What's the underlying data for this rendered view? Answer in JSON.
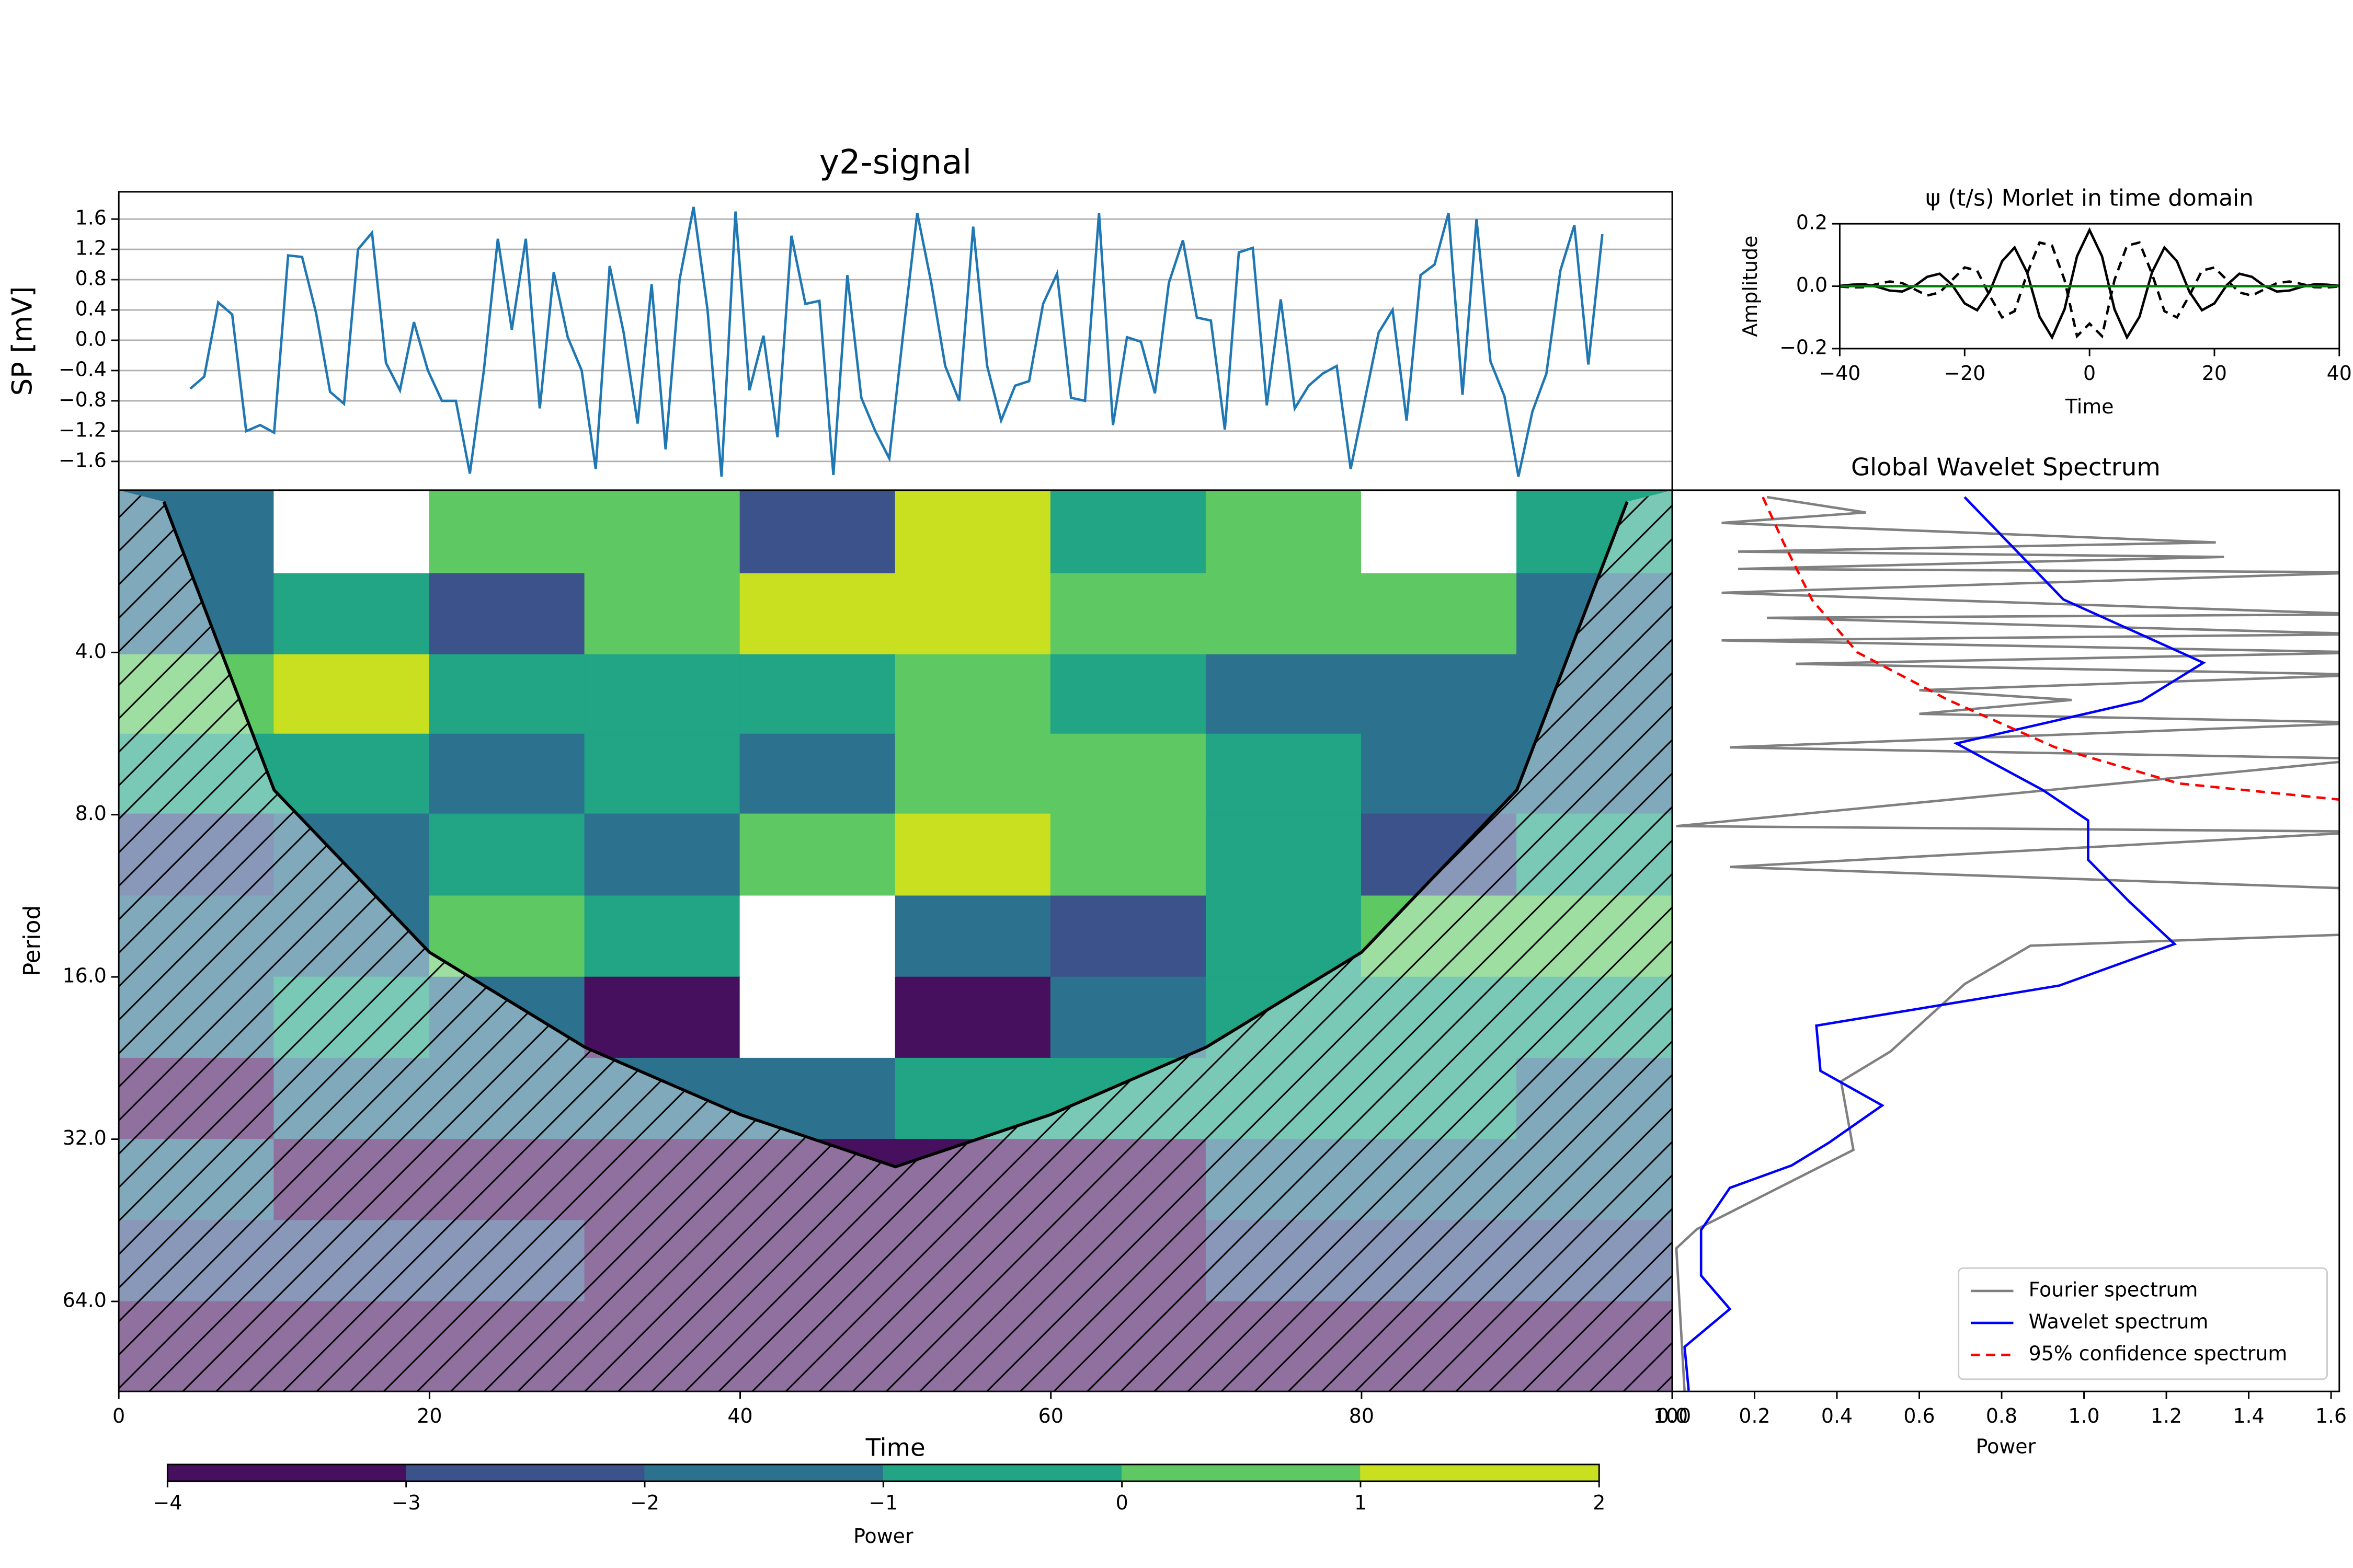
{
  "chart_data": [
    {
      "type": "line",
      "title": "y2-signal",
      "ylabel": "SP [mV]",
      "grid": true,
      "xlim": [
        0,
        100
      ],
      "ylim": [
        -1.98,
        1.96
      ],
      "yticks": [
        {
          "value": -1.6,
          "label": "−1.6"
        },
        {
          "value": -1.2,
          "label": "−1.2"
        },
        {
          "value": -0.8,
          "label": "−0.8"
        },
        {
          "value": -0.4,
          "label": "−0.4"
        },
        {
          "value": 0,
          "label": "0.0"
        },
        0.4,
        0.8,
        1.2,
        1.6
      ],
      "x": [
        4.6,
        5.5,
        6.4,
        7.3,
        8.2,
        9.1,
        10.0,
        10.9,
        11.8,
        12.7,
        13.6,
        14.5,
        15.4,
        16.3,
        17.2,
        18.1,
        19.0,
        19.9,
        20.8,
        21.7,
        22.6,
        23.5,
        24.4,
        25.3,
        26.2,
        27.1,
        28.0,
        28.9,
        29.8,
        30.7,
        31.6,
        32.5,
        33.4,
        34.3,
        35.2,
        36.1,
        37.0,
        37.9,
        38.8,
        39.7,
        40.6,
        41.5,
        42.4,
        43.3,
        44.2,
        45.1,
        46.0,
        46.9,
        47.8,
        48.7,
        49.6,
        50.5,
        51.4,
        52.3,
        53.2,
        54.1,
        55.0,
        55.9,
        56.8,
        57.7,
        58.6,
        59.5,
        60.4,
        61.3,
        62.2,
        63.1,
        64.0,
        64.9,
        65.8,
        66.7,
        67.6,
        68.5,
        69.4,
        70.3,
        71.2,
        72.1,
        73.0,
        73.9,
        74.8,
        75.7,
        76.6,
        77.5,
        78.4,
        79.3,
        80.2,
        81.1,
        82.0,
        82.9,
        83.8,
        84.7,
        85.6,
        86.5,
        87.4,
        88.3,
        89.2,
        90.1,
        91.0,
        91.9,
        92.8,
        93.7,
        94.6,
        95.5
      ],
      "series": [
        {
          "color": "#1f77b4",
          "values": [
            -0.64,
            -0.48,
            0.5,
            0.34,
            -1.2,
            -1.12,
            -1.22,
            1.12,
            1.1,
            0.36,
            -0.68,
            -0.84,
            1.2,
            1.42,
            -0.3,
            -0.66,
            0.24,
            -0.4,
            -0.8,
            -0.8,
            -1.76,
            -0.4,
            1.34,
            0.14,
            1.34,
            -0.9,
            0.9,
            0.04,
            -0.4,
            -1.7,
            0.98,
            0.1,
            -1.1,
            0.74,
            -1.44,
            0.8,
            1.76,
            0.4,
            -1.8,
            1.7,
            -0.66,
            0.06,
            -1.28,
            1.38,
            0.48,
            0.52,
            -1.78,
            0.86,
            -0.76,
            -1.2,
            -1.56,
            0.1,
            1.68,
            0.76,
            -0.34,
            -0.8,
            1.5,
            -0.34,
            -1.06,
            -0.6,
            -0.54,
            0.48,
            0.88,
            -0.76,
            -0.8,
            1.68,
            -1.12,
            0.04,
            -0.02,
            -0.7,
            0.76,
            1.32,
            0.3,
            0.26,
            -1.18,
            1.16,
            1.22,
            -0.86,
            0.54,
            -0.9,
            -0.6,
            -0.44,
            -0.34,
            -1.7,
            -0.8,
            0.1,
            0.4,
            -1.06,
            0.86,
            1.0,
            1.68,
            -0.72,
            1.6,
            -0.28,
            -0.74,
            -1.8,
            -0.94,
            -0.44,
            0.92,
            1.52,
            -0.32,
            1.4
          ]
        }
      ]
    },
    {
      "type": "contour",
      "xlabel": "Time",
      "ylabel": "Period",
      "log_scale": true,
      "xlim": [
        0,
        100
      ],
      "ylim": [
        2,
        94
      ],
      "xticks": [
        0,
        20,
        40,
        60,
        80,
        100
      ],
      "yticks": [
        {
          "value": 4,
          "label": "4.0"
        },
        {
          "value": 8,
          "label": "8.0"
        },
        {
          "value": 16,
          "label": "16.0"
        },
        {
          "value": 32,
          "label": "32.0"
        },
        {
          "value": 64,
          "label": "64.0"
        }
      ],
      "x": [
        5,
        15,
        25,
        35,
        45,
        55,
        65,
        75,
        85,
        95
      ],
      "periods": [
        2.4,
        3.4,
        4.8,
        6.7,
        9.5,
        13.5,
        19,
        27,
        38,
        54,
        76
      ],
      "z": [
        [
          -2,
          -4.5,
          0,
          0.5,
          -2.5,
          1,
          -1,
          0,
          -4.5,
          -1
        ],
        [
          -2,
          -1,
          -2.5,
          0.5,
          1,
          1.5,
          0.5,
          0.5,
          0,
          -1.5
        ],
        [
          0.5,
          1,
          -0.5,
          -0.5,
          -1,
          0,
          -0.5,
          -2,
          -1.5,
          -1.5
        ],
        [
          -1,
          -0.5,
          -1.5,
          -0.5,
          -2,
          0.5,
          0,
          -0.5,
          -2,
          -1.5
        ],
        [
          -2.5,
          -1.5,
          -1,
          -2,
          0,
          1,
          0,
          -1,
          -2.5,
          -0.5
        ],
        [
          -2,
          -1.5,
          0.5,
          -0.5,
          -4.5,
          -1.5,
          -3,
          -1,
          0.5,
          0
        ],
        [
          -1.5,
          -1,
          -1.5,
          -3.5,
          -4.5,
          -3.5,
          -1.5,
          -0.5,
          -0.5,
          -0.5
        ],
        [
          -3.5,
          -2,
          -1.5,
          -1.5,
          -1.5,
          -1,
          -1,
          -1,
          -1,
          -1.5
        ],
        [
          -1.5,
          -3.5,
          -3.5,
          -3.5,
          -3.5,
          -3.5,
          -3.5,
          -1.5,
          -1.5,
          -1.5
        ],
        [
          -2.5,
          -2.5,
          -2.5,
          -3.5,
          -3.5,
          -3.5,
          -3.5,
          -2.5,
          -2.5,
          -2.5
        ],
        [
          -3.5,
          -3.5,
          -3.5,
          -3.5,
          -3.5,
          -3.5,
          -3.5,
          -3.5,
          -3.5,
          -3.5
        ]
      ],
      "levels": [
        {
          "value": -4,
          "label": "−4"
        },
        {
          "value": -3,
          "label": "−3"
        },
        {
          "value": -2,
          "label": "−2"
        },
        {
          "value": -1,
          "label": "−1"
        },
        0,
        1,
        2
      ],
      "colors": [
        "#46105f",
        "#3b528b",
        "#2c728e",
        "#21a585",
        "#5ec962",
        "#c8e020"
      ],
      "colorbar_label": "Power",
      "coi_time": [
        2.9,
        10,
        20,
        30,
        40,
        50,
        60,
        70,
        80,
        90,
        97.1
      ],
      "coi_period": [
        2.1,
        7.2,
        14.4,
        21.6,
        28.8,
        36,
        28.8,
        21.6,
        14.4,
        7.2,
        2.1
      ]
    },
    {
      "type": "line",
      "title": "ψ (t/s) Morlet in time domain",
      "xlabel": "Time",
      "ylabel": "Amplitude",
      "xlim": [
        -40,
        40
      ],
      "ylim": [
        -0.2,
        0.2
      ],
      "xticks": [
        {
          "value": -40,
          "label": "−40"
        },
        {
          "value": -20,
          "label": "−20"
        },
        0,
        20,
        40
      ],
      "yticks": [
        {
          "value": -0.2,
          "label": "−0.2"
        },
        {
          "value": 0,
          "label": "0.0"
        },
        0.2
      ],
      "x": [
        -40,
        -38,
        -36,
        -34,
        -32,
        -30,
        -28,
        -26,
        -24,
        -22,
        -20,
        -18,
        -16,
        -14,
        -12,
        -10,
        -8,
        -6,
        -4,
        -2,
        0,
        2,
        4,
        6,
        8,
        10,
        12,
        14,
        16,
        18,
        20,
        22,
        24,
        26,
        28,
        30,
        32,
        34,
        36,
        38,
        40
      ],
      "series": [
        {
          "color": "#000000",
          "values": [
            0.001,
            0.005,
            0.006,
            -0.002,
            -0.014,
            -0.017,
            0.001,
            0.03,
            0.04,
            0.004,
            -0.055,
            -0.077,
            -0.018,
            0.08,
            0.124,
            0.044,
            -0.098,
            -0.164,
            -0.074,
            0.096,
            0.18,
            0.096,
            -0.074,
            -0.164,
            -0.098,
            0.044,
            0.124,
            0.08,
            -0.018,
            -0.077,
            -0.055,
            0.004,
            0.04,
            0.03,
            0.001,
            -0.017,
            -0.014,
            -0.002,
            0.006,
            0.005,
            0.001
          ]
        },
        {
          "color": "#000000",
          "linestyle": "dashed",
          "values": [
            -0.001,
            -0.004,
            -0.003,
            0.007,
            0.015,
            0.01,
            -0.01,
            -0.03,
            -0.02,
            0.02,
            0.06,
            0.05,
            -0.03,
            -0.1,
            -0.08,
            0.04,
            0.14,
            0.13,
            0.02,
            -0.16,
            -0.12,
            -0.16,
            0.02,
            0.13,
            0.14,
            0.04,
            -0.08,
            -0.1,
            -0.03,
            0.05,
            0.06,
            0.02,
            -0.02,
            -0.03,
            -0.01,
            0.01,
            0.015,
            0.007,
            -0.003,
            -0.004,
            -0.001
          ]
        },
        {
          "color": "#008000",
          "values": [
            0,
            0,
            0,
            0,
            0,
            0,
            0,
            0,
            0,
            0,
            0,
            0,
            0,
            0,
            0,
            0,
            0,
            0,
            0,
            0,
            0,
            0,
            0,
            0,
            0,
            0,
            0,
            0,
            0,
            0,
            0,
            0,
            0,
            0,
            0,
            0,
            0,
            0,
            0,
            0,
            0
          ]
        }
      ]
    },
    {
      "type": "line",
      "orientation": "horizontal",
      "title": "Global Wavelet Spectrum",
      "xlabel": "Power",
      "log_scale": true,
      "xlim": [
        0,
        1.62
      ],
      "ylim": [
        2,
        94
      ],
      "legend": "lower right",
      "xticks": [
        {
          "value": 0,
          "label": "0.0"
        },
        0.2,
        0.4,
        0.6,
        0.8,
        {
          "value": 1,
          "label": "1.0"
        },
        1.2,
        1.4,
        1.6
      ],
      "series": [
        {
          "name": "Fourier spectrum",
          "color": "#808080",
          "periods": [
            2.06,
            2.2,
            2.3,
            2.5,
            2.6,
            2.66,
            2.8,
            2.84,
            3.1,
            3.4,
            3.45,
            3.7,
            3.8,
            4.0,
            4.2,
            4.4,
            4.7,
            4.9,
            5.2,
            5.4,
            6.0,
            6.3,
            8.4,
            8.6,
            10.0,
            11.0,
            13.3,
            14.0,
            16.5,
            22,
            25,
            33.5,
            47,
            51,
            94
          ],
          "values": [
            0.23,
            0.47,
            0.12,
            1.32,
            0.16,
            1.34,
            0.16,
            1.7,
            0.12,
            1.7,
            0.23,
            1.7,
            0.12,
            1.7,
            0.3,
            1.7,
            0.6,
            0.97,
            0.6,
            1.7,
            0.14,
            1.7,
            0.01,
            1.7,
            0.14,
            1.7,
            1.7,
            0.87,
            0.71,
            0.53,
            0.41,
            0.44,
            0.06,
            0.01,
            0.03
          ]
        },
        {
          "name": "Wavelet spectrum",
          "color": "#0000ff",
          "periods": [
            2.06,
            3.19,
            4.18,
            4.92,
            5.9,
            7.2,
            8.2,
            9.7,
            11.6,
            13.9,
            16.6,
            19.7,
            23.9,
            27.7,
            32.5,
            35.8,
            39.4,
            47.2,
            57.3,
            66.1,
            77.7,
            93.7
          ],
          "values": [
            0.71,
            0.95,
            1.29,
            1.14,
            0.69,
            0.9,
            1.01,
            1.01,
            1.11,
            1.22,
            0.94,
            0.35,
            0.36,
            0.51,
            0.38,
            0.29,
            0.14,
            0.07,
            0.07,
            0.14,
            0.03,
            0.04
          ]
        },
        {
          "name": "95% confidence spectrum",
          "color": "#ff0000",
          "linestyle": "dashed",
          "periods": [
            2.06,
            2.5,
            3.2,
            4.0,
            4.9,
            6.0,
            7.0,
            7.5
          ],
          "values": [
            0.22,
            0.27,
            0.34,
            0.45,
            0.67,
            0.93,
            1.23,
            1.62
          ]
        }
      ]
    }
  ]
}
